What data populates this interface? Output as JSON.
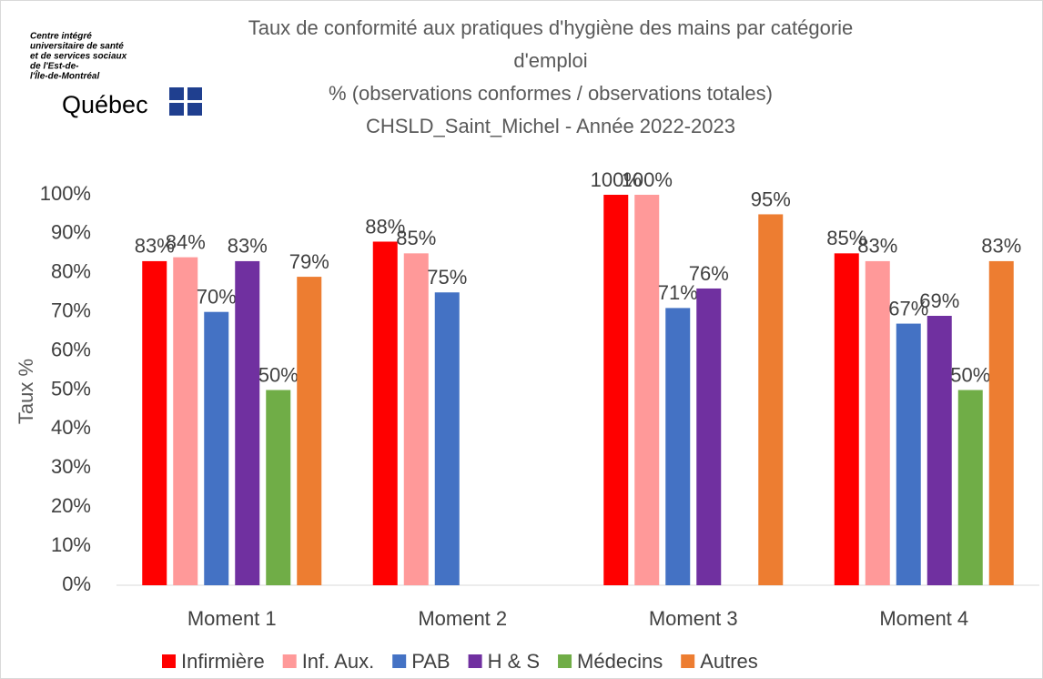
{
  "chart_data": {
    "type": "bar",
    "logo": {
      "lines": [
        "Centre intégré",
        "universitaire de santé",
        "et de services sociaux",
        "de l'Est-de-",
        "l'Île-de-Montréal"
      ],
      "brand": "Québec"
    },
    "title_lines": [
      "Taux de conformité aux pratiques d'hygiène des mains par catégorie",
      "d'emploi"
    ],
    "subtitle_lines": [
      "% (observations conformes / observations totales)",
      "CHSLD_Saint_Michel - Année 2022-2023"
    ],
    "ylabel": "Taux %",
    "categories": [
      "Moment 1",
      "Moment 2",
      "Moment 3",
      "Moment 4"
    ],
    "series": [
      {
        "name": "Infirmière",
        "color": "#ff0000",
        "values": [
          83,
          88,
          100,
          85
        ],
        "value_labels": [
          "83%",
          "88%",
          "100%",
          "85%"
        ]
      },
      {
        "name": "Inf. Aux.",
        "color": "#ff9999",
        "values": [
          84,
          85,
          100,
          83
        ],
        "value_labels": [
          "84%",
          "85%",
          "100%",
          "83%"
        ]
      },
      {
        "name": "PAB",
        "color": "#4472c4",
        "values": [
          70,
          75,
          71,
          67
        ],
        "value_labels": [
          "70%",
          "75%",
          "71%",
          "67%"
        ]
      },
      {
        "name": "H & S",
        "color": "#7030a0",
        "values": [
          83,
          null,
          76,
          69
        ],
        "value_labels": [
          "83%",
          null,
          "76%",
          "69%"
        ]
      },
      {
        "name": "Médecins",
        "color": "#70ad47",
        "values": [
          50,
          null,
          null,
          50
        ],
        "value_labels": [
          "50%",
          null,
          null,
          "50%"
        ]
      },
      {
        "name": "Autres",
        "color": "#ed7d31",
        "values": [
          79,
          null,
          95,
          83
        ],
        "value_labels": [
          "79%",
          null,
          "95%",
          "83%"
        ]
      }
    ],
    "ylim": [
      0,
      100
    ],
    "yticks": [
      {
        "value": 0,
        "label": "0%"
      },
      {
        "value": 10,
        "label": "10%"
      },
      {
        "value": 20,
        "label": "20%"
      },
      {
        "value": 30,
        "label": "30%"
      },
      {
        "value": 40,
        "label": "40%"
      },
      {
        "value": 50,
        "label": "50%"
      },
      {
        "value": 60,
        "label": "60%"
      },
      {
        "value": 70,
        "label": "70%"
      },
      {
        "value": 80,
        "label": "80%"
      },
      {
        "value": 90,
        "label": "90%"
      },
      {
        "value": 100,
        "label": "100%"
      }
    ],
    "legend": "bottom",
    "grid": false
  }
}
